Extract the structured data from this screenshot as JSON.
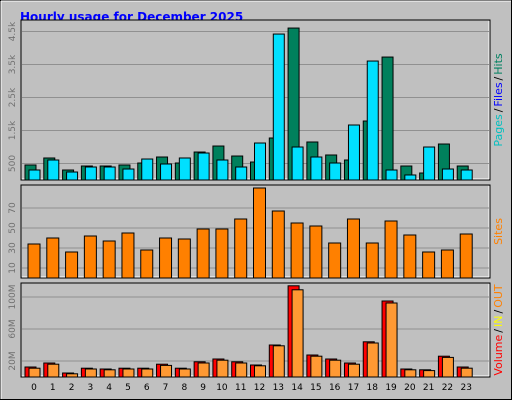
{
  "title": "Hourly usage for December 2025",
  "chart_data": [
    {
      "type": "bar",
      "separator": "/",
      "legend": [
        {
          "name": "Pages",
          "color": "#00c0c0"
        },
        {
          "name": "Files",
          "color": "#0000ff"
        },
        {
          "name": "Hits",
          "color": "#008060"
        }
      ],
      "series": [
        {
          "name": "Hits",
          "color": "#00805c",
          "values": [
            455,
            667,
            303,
            424,
            424,
            455,
            515,
            697,
            515,
            848,
            1030,
            727,
            545,
            1273,
            4606,
            1152,
            758,
            606,
            1788,
            3727,
            424,
            212,
            1091,
            424
          ]
        },
        {
          "name": "Pages",
          "color": "#00e0ff",
          "values": [
            303,
            606,
            242,
            394,
            394,
            333,
            636,
            485,
            667,
            818,
            606,
            394,
            1121,
            4424,
            1000,
            697,
            515,
            1667,
            3606,
            303,
            152,
            1000,
            333,
            303
          ]
        }
      ],
      "ylim": [
        0,
        4850
      ],
      "yticks": [
        {
          "value": 500,
          "label": "500"
        },
        {
          "value": 1500,
          "label": "1.5k"
        },
        {
          "value": 2500,
          "label": "2.5k"
        },
        {
          "value": 3500,
          "label": "3.5k"
        },
        {
          "value": 4500,
          "label": "4.5k"
        }
      ],
      "grid": true
    },
    {
      "type": "bar",
      "legend": [
        {
          "name": "Sites",
          "color": "#ff8000"
        }
      ],
      "series": [
        {
          "name": "Sites",
          "color": "#ff8000",
          "values": [
            34,
            40,
            26,
            42,
            37,
            45,
            28,
            40,
            39,
            49,
            49,
            59,
            90,
            67,
            55,
            52,
            35,
            59,
            35,
            57,
            43,
            26,
            28,
            44
          ]
        }
      ],
      "ylim": [
        0,
        93
      ],
      "yticks": [
        10,
        30,
        50,
        70
      ],
      "grid": true
    },
    {
      "type": "bar",
      "separator": "/",
      "legend": [
        {
          "name": "Volume",
          "color": "#ff0000"
        },
        {
          "name": "IN",
          "color": "#ffff00"
        },
        {
          "name": "OUT",
          "color": "#ff8000"
        }
      ],
      "categories": [
        "0",
        "1",
        "2",
        "3",
        "4",
        "5",
        "6",
        "7",
        "8",
        "9",
        "10",
        "11",
        "12",
        "13",
        "14",
        "15",
        "16",
        "17",
        "18",
        "19",
        "20",
        "21",
        "22",
        "23"
      ],
      "series": [
        {
          "name": "Volume",
          "color": "#ff0000",
          "values": [
            12.5,
            17.5,
            5,
            11,
            10,
            11,
            11,
            16,
            11,
            19,
            22.5,
            19,
            15,
            40,
            114,
            27.5,
            22.5,
            17.5,
            44,
            95,
            10,
            9,
            26,
            12.5
          ]
        },
        {
          "name": "OUT",
          "color": "#ff9933",
          "values": [
            11,
            16,
            4,
            10,
            9,
            10,
            10,
            14.5,
            10,
            17.5,
            21,
            17.5,
            14,
            39,
            109,
            26,
            21,
            16,
            42.5,
            92.5,
            9,
            8,
            24.5,
            11
          ]
        }
      ],
      "ylim": [
        0,
        117.5
      ],
      "yticks": [
        {
          "value": 20,
          "label": "20M"
        },
        {
          "value": 60,
          "label": "60M"
        },
        {
          "value": 100,
          "label": "100M"
        }
      ],
      "grid": true
    }
  ]
}
